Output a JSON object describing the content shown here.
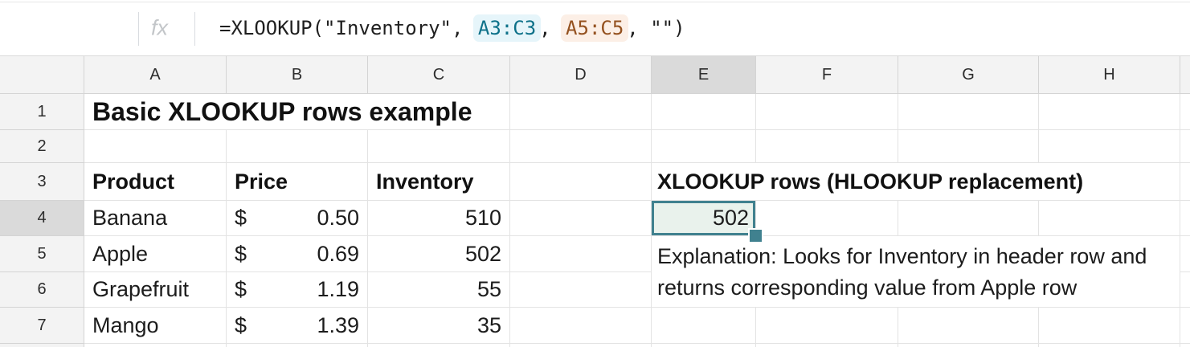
{
  "formula_bar": {
    "fx_icon": "fx",
    "formula_prefix": "=XLOOKUP(\"Inventory\", ",
    "formula_range1": "A3:C3",
    "formula_sep": ", ",
    "formula_range2": "A5:C5",
    "formula_suffix": ", \"\")"
  },
  "colors": {
    "selection_border": "#40818f",
    "selection_fill": "#e9f2ec",
    "range1_text": "#0d7189",
    "range1_bg": "#e6f5fa",
    "range2_text": "#94511f",
    "range2_bg": "#fcefe6",
    "header_bg": "#f3f3f3",
    "header_highlight_bg": "#dadada",
    "gridline": "#e3e3e3"
  },
  "sheet": {
    "column_headers": [
      "A",
      "B",
      "C",
      "D",
      "E",
      "F",
      "G",
      "H"
    ],
    "row_headers": [
      "1",
      "2",
      "3",
      "4",
      "5",
      "6",
      "7"
    ],
    "selected_cell": {
      "column": "E",
      "row": "4",
      "value": "502"
    },
    "title": "Basic XLOOKUP rows example",
    "table": {
      "product_header": "Product",
      "price_header": "Price",
      "inventory_header": "Inventory",
      "rows": [
        {
          "product": "Banana",
          "currency": "$",
          "price": "0.50",
          "inventory": "510"
        },
        {
          "product": "Apple",
          "currency": "$",
          "price": "0.69",
          "inventory": "502"
        },
        {
          "product": "Grapefruit",
          "currency": "$",
          "price": "1.19",
          "inventory": "55"
        },
        {
          "product": "Mango",
          "currency": "$",
          "price": "1.39",
          "inventory": "35"
        }
      ]
    },
    "result_section": {
      "heading": "XLOOKUP rows (HLOOKUP replacement)",
      "result_value": "502",
      "explanation_line1": "Explanation: Looks for Inventory in header row and",
      "explanation_line2": "returns corresponding value from Apple row"
    }
  }
}
